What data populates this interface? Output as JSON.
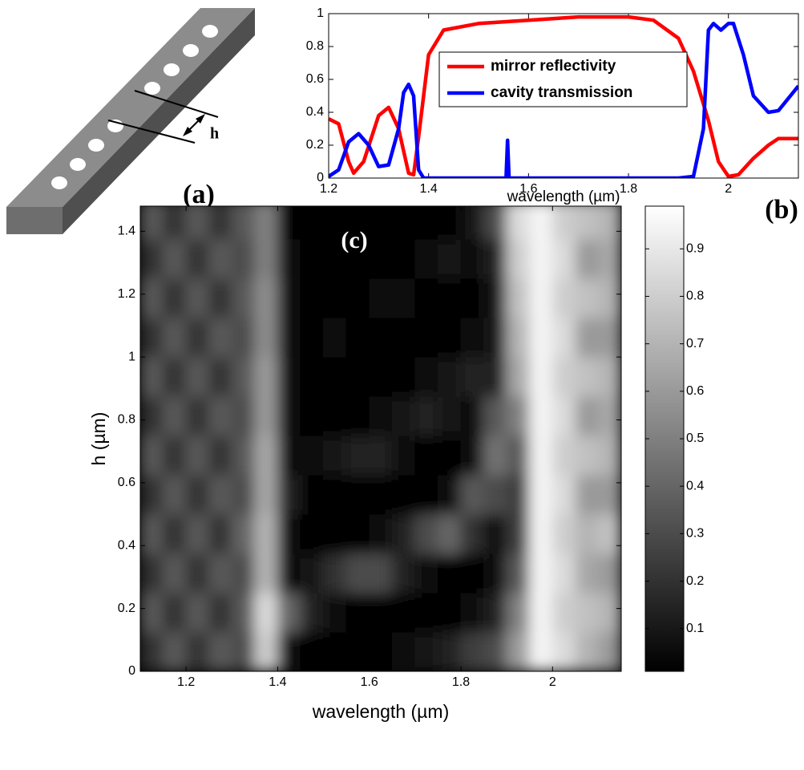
{
  "diagram": {
    "dimension_label": "h",
    "panel_label": "(a)"
  },
  "chart_data": [
    {
      "type": "line",
      "panel_label": "(b)",
      "x_label": "wavelength (µm)",
      "xlim": [
        1.2,
        2.14
      ],
      "ylim": [
        0,
        1
      ],
      "xticks": [
        1.2,
        1.4,
        1.6,
        1.8,
        2
      ],
      "yticks": [
        0,
        0.2,
        0.4,
        0.6,
        0.8,
        1
      ],
      "legend": "upper center",
      "series": [
        {
          "name": "mirror reflectivity",
          "color": "#ff0000",
          "x": [
            1.2,
            1.22,
            1.24,
            1.25,
            1.27,
            1.3,
            1.32,
            1.34,
            1.36,
            1.37,
            1.38,
            1.4,
            1.43,
            1.5,
            1.6,
            1.7,
            1.8,
            1.85,
            1.9,
            1.93,
            1.96,
            1.98,
            2.0,
            2.02,
            2.05,
            2.08,
            2.1,
            2.14
          ],
          "values": [
            0.36,
            0.33,
            0.1,
            0.03,
            0.1,
            0.38,
            0.43,
            0.3,
            0.03,
            0.02,
            0.25,
            0.75,
            0.9,
            0.94,
            0.96,
            0.98,
            0.98,
            0.96,
            0.85,
            0.65,
            0.35,
            0.1,
            0.01,
            0.02,
            0.12,
            0.2,
            0.24,
            0.24
          ]
        },
        {
          "name": "cavity transmission",
          "color": "#0000ff",
          "x": [
            1.2,
            1.22,
            1.24,
            1.26,
            1.28,
            1.3,
            1.32,
            1.34,
            1.35,
            1.36,
            1.37,
            1.38,
            1.39,
            1.555,
            1.558,
            1.561,
            1.9,
            1.93,
            1.95,
            1.96,
            1.97,
            1.985,
            2.0,
            2.01,
            2.03,
            2.05,
            2.08,
            2.1,
            2.14
          ],
          "values": [
            0.01,
            0.05,
            0.22,
            0.27,
            0.2,
            0.07,
            0.08,
            0.3,
            0.52,
            0.57,
            0.5,
            0.05,
            0,
            0,
            0.23,
            0,
            0,
            0.01,
            0.3,
            0.9,
            0.94,
            0.9,
            0.94,
            0.94,
            0.75,
            0.5,
            0.4,
            0.41,
            0.56
          ]
        }
      ]
    },
    {
      "type": "heatmap",
      "panel_label": "(c)",
      "x_label": "wavelength (µm)",
      "y_label": "h (µm)",
      "xlim": [
        1.1,
        2.15
      ],
      "ylim": [
        0,
        1.48
      ],
      "xticks": [
        1.2,
        1.4,
        1.6,
        1.8,
        2
      ],
      "yticks": [
        0,
        0.2,
        0.4,
        0.6,
        0.8,
        1,
        1.2,
        1.4
      ],
      "colormap": "gray",
      "clim": [
        0.01,
        0.99
      ],
      "colorbar_ticks": [
        0.1,
        0.2,
        0.3,
        0.4,
        0.5,
        0.6,
        0.7,
        0.8,
        0.9
      ],
      "x": [
        1.125,
        1.175,
        1.225,
        1.275,
        1.325,
        1.375,
        1.425,
        1.475,
        1.525,
        1.575,
        1.625,
        1.675,
        1.725,
        1.775,
        1.825,
        1.875,
        1.925,
        1.975,
        2.025,
        2.075,
        2.125
      ],
      "y": [
        0.0625,
        0.1875,
        0.3125,
        0.4375,
        0.5625,
        0.6875,
        0.8125,
        0.9375,
        1.0625,
        1.1875,
        1.3125,
        1.4375
      ],
      "z": [
        [
          0.2,
          0.35,
          0.2,
          0.35,
          0.3,
          0.8,
          0.05,
          0,
          0,
          0,
          0,
          0.05,
          0.1,
          0.15,
          0.25,
          0.3,
          0.6,
          0.95,
          0.85,
          0.7,
          0.6
        ],
        [
          0.35,
          0.2,
          0.35,
          0.2,
          0.35,
          0.85,
          0.4,
          0.15,
          0.05,
          0,
          0,
          0,
          0,
          0,
          0.05,
          0.15,
          0.5,
          0.95,
          0.8,
          0.75,
          0.7
        ],
        [
          0.2,
          0.35,
          0.2,
          0.35,
          0.3,
          0.7,
          0.05,
          0.1,
          0.2,
          0.3,
          0.3,
          0.15,
          0.05,
          0,
          0,
          0.05,
          0.35,
          0.95,
          0.85,
          0.65,
          0.6
        ],
        [
          0.35,
          0.2,
          0.35,
          0.2,
          0.4,
          0.7,
          0.05,
          0,
          0,
          0,
          0.05,
          0.15,
          0.3,
          0.4,
          0.2,
          0.05,
          0.25,
          0.95,
          0.8,
          0.7,
          0.75
        ],
        [
          0.2,
          0.35,
          0.2,
          0.35,
          0.3,
          0.65,
          0.15,
          0,
          0,
          0,
          0,
          0,
          0,
          0.05,
          0.35,
          0.3,
          0.25,
          0.95,
          0.85,
          0.6,
          0.6
        ],
        [
          0.35,
          0.2,
          0.35,
          0.2,
          0.35,
          0.65,
          0.05,
          0.05,
          0.1,
          0.15,
          0.15,
          0.05,
          0,
          0,
          0.05,
          0.45,
          0.35,
          0.95,
          0.8,
          0.75,
          0.7
        ],
        [
          0.2,
          0.35,
          0.2,
          0.35,
          0.3,
          0.6,
          0.05,
          0,
          0,
          0,
          0.05,
          0.1,
          0.15,
          0.1,
          0.05,
          0.35,
          0.5,
          0.95,
          0.85,
          0.6,
          0.65
        ],
        [
          0.35,
          0.2,
          0.35,
          0.2,
          0.35,
          0.6,
          0.05,
          0,
          0,
          0,
          0,
          0,
          0.05,
          0.1,
          0.15,
          0.15,
          0.65,
          0.95,
          0.8,
          0.75,
          0.7
        ],
        [
          0.2,
          0.35,
          0.2,
          0.35,
          0.3,
          0.55,
          0.05,
          0,
          0.05,
          0,
          0,
          0,
          0,
          0,
          0.05,
          0.1,
          0.7,
          0.95,
          0.85,
          0.6,
          0.6
        ],
        [
          0.35,
          0.2,
          0.35,
          0.2,
          0.35,
          0.55,
          0.05,
          0,
          0,
          0,
          0.05,
          0.05,
          0,
          0,
          0,
          0.1,
          0.75,
          0.95,
          0.8,
          0.75,
          0.7
        ],
        [
          0.2,
          0.35,
          0.2,
          0.35,
          0.3,
          0.5,
          0.05,
          0,
          0,
          0,
          0,
          0,
          0.05,
          0.1,
          0.05,
          0.15,
          0.8,
          0.95,
          0.85,
          0.6,
          0.65
        ],
        [
          0.35,
          0.2,
          0.35,
          0.2,
          0.35,
          0.5,
          0,
          0,
          0,
          0,
          0,
          0,
          0,
          0,
          0.1,
          0.3,
          0.85,
          0.95,
          0.8,
          0.75,
          0.7
        ]
      ]
    }
  ]
}
